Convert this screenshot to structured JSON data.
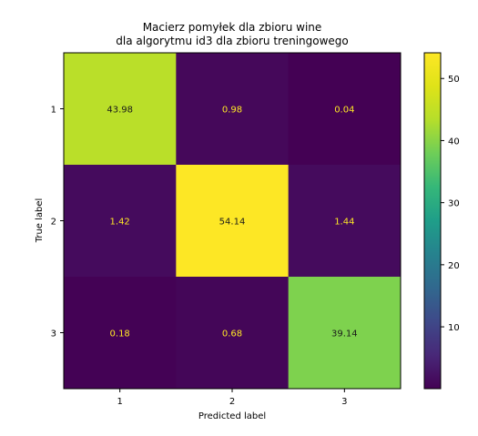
{
  "chart_data": {
    "type": "heatmap",
    "title_lines": [
      "Macierz pomyłek dla zbioru wine",
      "dla algorytmu id3 dla zbioru treningowego"
    ],
    "xlabel": "Predicted label",
    "ylabel": "True label",
    "x_categories": [
      "1",
      "2",
      "3"
    ],
    "y_categories": [
      "1",
      "2",
      "3"
    ],
    "values": [
      [
        43.98,
        0.98,
        0.04
      ],
      [
        1.42,
        54.14,
        1.44
      ],
      [
        0.18,
        0.68,
        39.14
      ]
    ],
    "value_labels": [
      [
        "43.98",
        "0.98",
        "0.04"
      ],
      [
        "1.42",
        "54.14",
        "1.44"
      ],
      [
        "0.18",
        "0.68",
        "39.14"
      ]
    ],
    "colormap": "viridis",
    "colorbar": {
      "range": [
        0.04,
        54.14
      ],
      "ticks": [
        10,
        20,
        30,
        40,
        50
      ],
      "tick_labels": [
        "10",
        "20",
        "30",
        "40",
        "50"
      ]
    },
    "text_color_dark_cell": "#fde725",
    "text_color_light_cell": "#1a1a1a"
  }
}
